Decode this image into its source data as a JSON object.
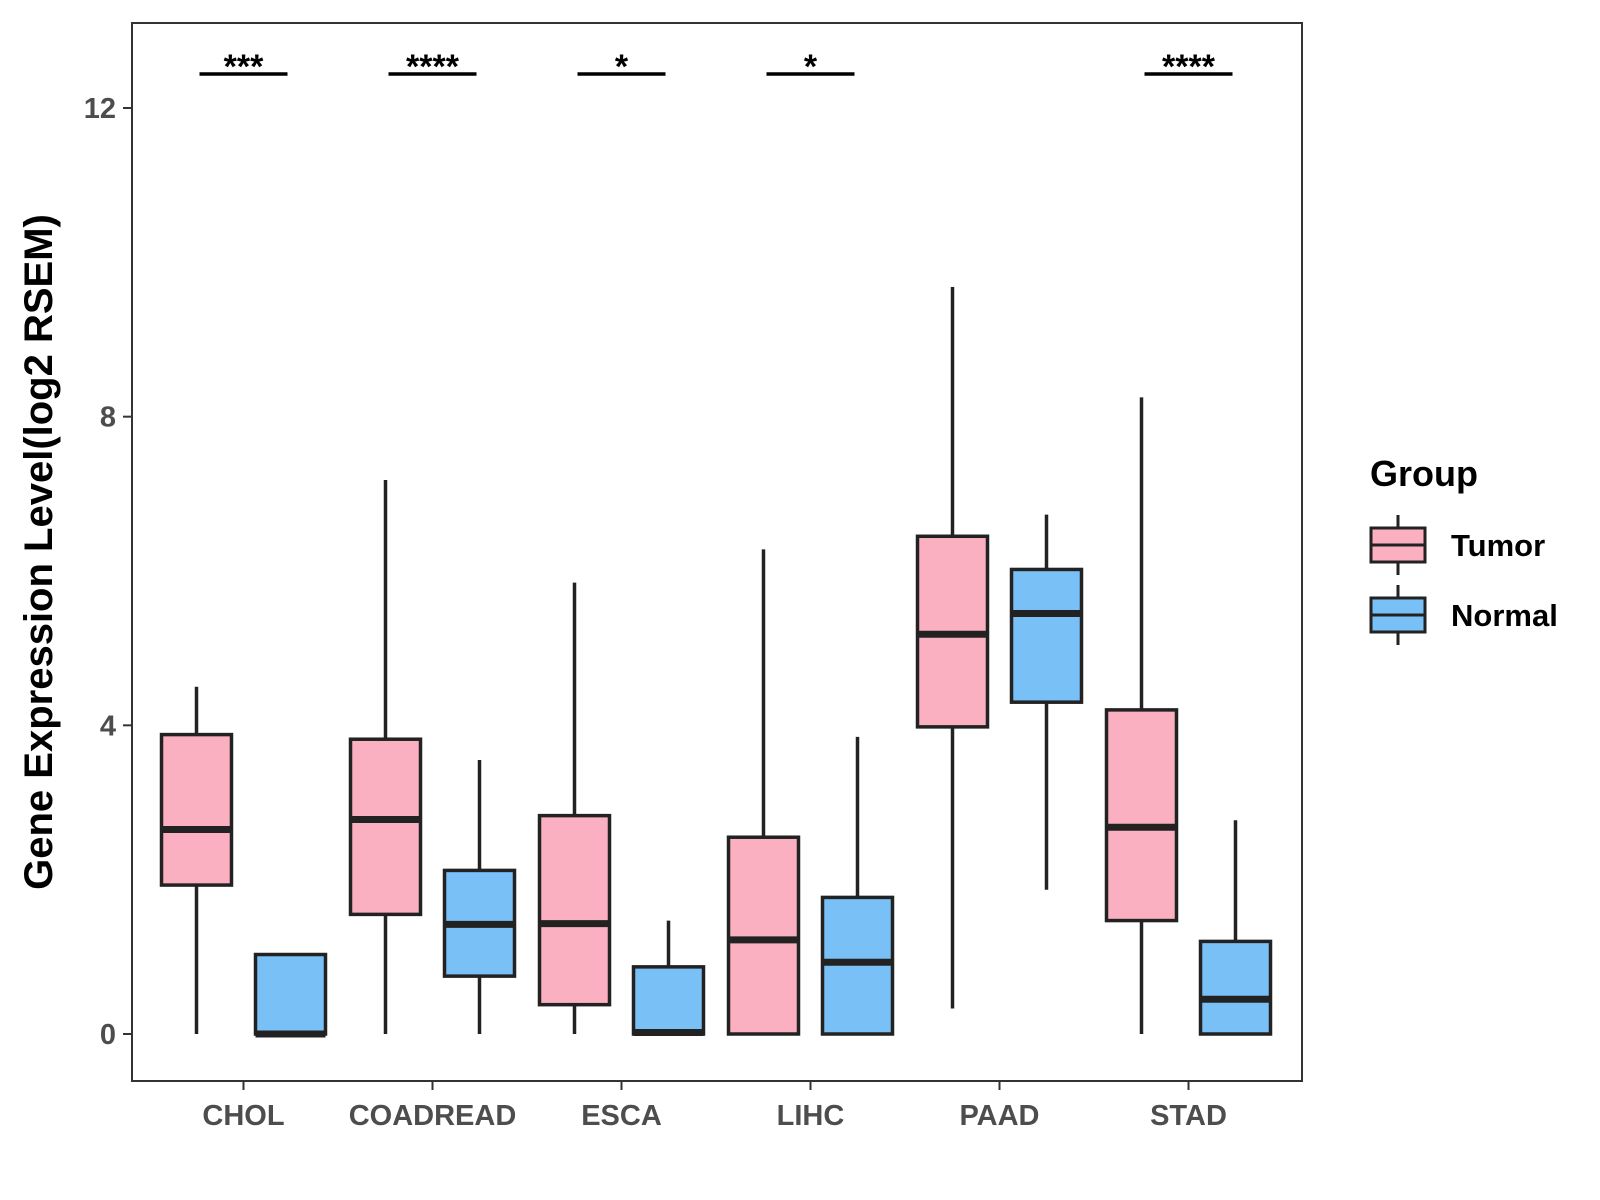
{
  "chart_data": {
    "type": "boxplot",
    "ylabel": "Gene Expression Level(log2 RSEM)",
    "xlabel": "",
    "ylim": [
      -0.6,
      13.1
    ],
    "yticks": [
      0,
      4,
      8,
      12
    ],
    "grid": false,
    "legend": {
      "title": "Group",
      "position": "right"
    },
    "categories": [
      "CHOL",
      "COADREAD",
      "ESCA",
      "LIHC",
      "PAAD",
      "STAD"
    ],
    "series": [
      {
        "name": "Tumor",
        "color": "#FAB0C1",
        "boxes": [
          {
            "min": 0.0,
            "q1": 1.93,
            "median": 2.65,
            "q3": 3.88,
            "max": 4.5
          },
          {
            "min": 0.0,
            "q1": 1.55,
            "median": 2.78,
            "q3": 3.82,
            "max": 7.18
          },
          {
            "min": 0.0,
            "q1": 0.38,
            "median": 1.43,
            "q3": 2.83,
            "max": 5.85
          },
          {
            "min": 0.0,
            "q1": 0.0,
            "median": 1.22,
            "q3": 2.55,
            "max": 6.28
          },
          {
            "min": 0.33,
            "q1": 3.98,
            "median": 5.18,
            "q3": 6.45,
            "max": 9.68
          },
          {
            "min": 0.0,
            "q1": 1.47,
            "median": 2.68,
            "q3": 4.2,
            "max": 8.25
          }
        ]
      },
      {
        "name": "Normal",
        "color": "#79C0F7",
        "boxes": [
          {
            "min": 0.0,
            "q1": 0.0,
            "median": 0.0,
            "q3": 1.03,
            "max": 1.03
          },
          {
            "min": 0.0,
            "q1": 0.75,
            "median": 1.42,
            "q3": 2.12,
            "max": 3.55
          },
          {
            "min": 0.0,
            "q1": 0.0,
            "median": 0.02,
            "q3": 0.87,
            "max": 1.47
          },
          {
            "min": 0.0,
            "q1": 0.0,
            "median": 0.93,
            "q3": 1.77,
            "max": 3.85
          },
          {
            "min": 1.87,
            "q1": 4.3,
            "median": 5.45,
            "q3": 6.02,
            "max": 6.73
          },
          {
            "min": 0.0,
            "q1": 0.0,
            "median": 0.45,
            "q3": 1.2,
            "max": 2.77
          }
        ]
      }
    ],
    "significance": [
      {
        "category": "CHOL",
        "label": "***"
      },
      {
        "category": "COADREAD",
        "label": "****"
      },
      {
        "category": "ESCA",
        "label": "*"
      },
      {
        "category": "LIHC",
        "label": "*"
      },
      {
        "category": "PAAD",
        "label": ""
      },
      {
        "category": "STAD",
        "label": "****"
      }
    ]
  }
}
